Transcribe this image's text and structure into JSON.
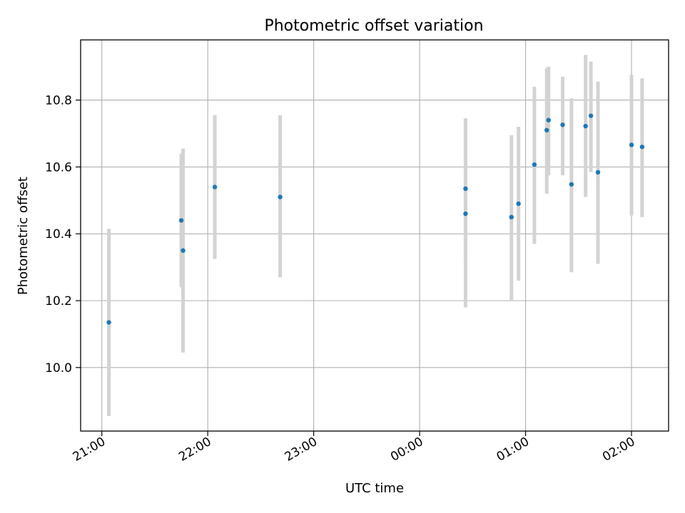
{
  "chart_data": {
    "type": "scatter",
    "title": "Photometric offset variation",
    "xlabel": "UTC time",
    "ylabel": "Photometric offset",
    "x_unit": "time (HH:MM, UTC)",
    "xlim": [
      "20:48",
      "02:21"
    ],
    "ylim": [
      9.81,
      10.98
    ],
    "grid": true,
    "x_ticks": [
      "21:00",
      "22:00",
      "23:00",
      "00:00",
      "01:00",
      "02:00"
    ],
    "y_ticks": [
      "10.0",
      "10.2",
      "10.4",
      "10.6",
      "10.8"
    ],
    "y_tick_values": [
      10.0,
      10.2,
      10.4,
      10.6,
      10.8
    ],
    "points": [
      {
        "x": "21:04",
        "y": 10.135,
        "ylow": 9.855,
        "yhigh": 10.415
      },
      {
        "x": "21:45",
        "y": 10.44,
        "ylow": 10.24,
        "yhigh": 10.64
      },
      {
        "x": "21:46",
        "y": 10.35,
        "ylow": 10.045,
        "yhigh": 10.655
      },
      {
        "x": "22:04",
        "y": 10.54,
        "ylow": 10.325,
        "yhigh": 10.755
      },
      {
        "x": "22:41",
        "y": 10.51,
        "ylow": 10.27,
        "yhigh": 10.755
      },
      {
        "x": "00:26",
        "y": 10.535,
        "ylow": 10.325,
        "yhigh": 10.745
      },
      {
        "x": "00:26",
        "y": 10.46,
        "ylow": 10.18,
        "yhigh": 10.745
      },
      {
        "x": "00:52",
        "y": 10.45,
        "ylow": 10.2,
        "yhigh": 10.695
      },
      {
        "x": "00:56",
        "y": 10.49,
        "ylow": 10.26,
        "yhigh": 10.72
      },
      {
        "x": "01:05",
        "y": 10.607,
        "ylow": 10.37,
        "yhigh": 10.84
      },
      {
        "x": "01:12",
        "y": 10.71,
        "ylow": 10.52,
        "yhigh": 10.895
      },
      {
        "x": "01:13",
        "y": 10.74,
        "ylow": 10.575,
        "yhigh": 10.9
      },
      {
        "x": "01:21",
        "y": 10.726,
        "ylow": 10.575,
        "yhigh": 10.87
      },
      {
        "x": "01:26",
        "y": 10.548,
        "ylow": 10.285,
        "yhigh": 10.805
      },
      {
        "x": "01:34",
        "y": 10.722,
        "ylow": 10.51,
        "yhigh": 10.935
      },
      {
        "x": "01:37",
        "y": 10.753,
        "ylow": 10.585,
        "yhigh": 10.915
      },
      {
        "x": "01:41",
        "y": 10.584,
        "ylow": 10.31,
        "yhigh": 10.855
      },
      {
        "x": "02:00",
        "y": 10.666,
        "ylow": 10.455,
        "yhigh": 10.875
      },
      {
        "x": "02:06",
        "y": 10.66,
        "ylow": 10.45,
        "yhigh": 10.865
      }
    ],
    "colors": {
      "marker": "#1f77b4",
      "errorbar": "#d3d3d3",
      "grid": "#b0b0b0",
      "axes": "#000000"
    }
  }
}
